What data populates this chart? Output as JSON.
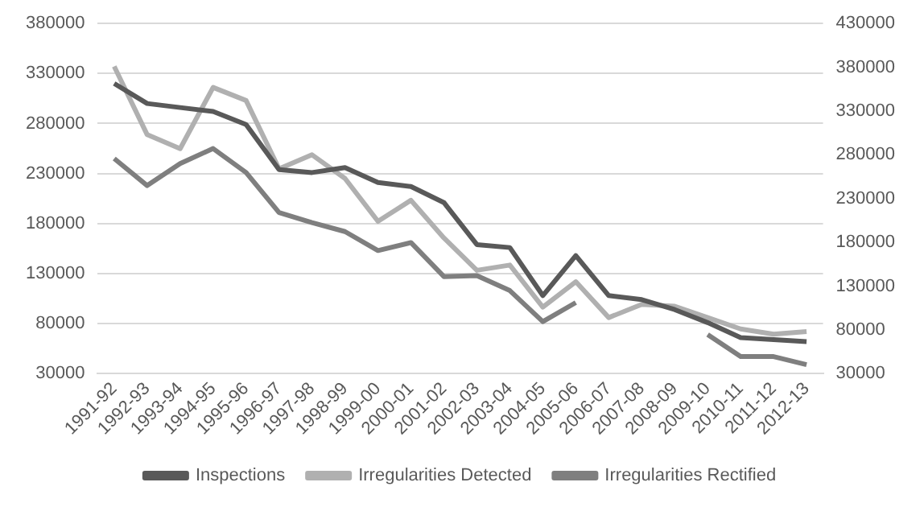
{
  "chart_data": {
    "type": "line",
    "categories": [
      "1991-92",
      "1992-93",
      "1993-94",
      "1994-95",
      "1995-96",
      "1996-97",
      "1997-98",
      "1998-99",
      "1999-00",
      "2000-01",
      "2001-02",
      "2002-03",
      "2003-04",
      "2004-05",
      "2005-06",
      "2006-07",
      "2007-08",
      "2008-09",
      "2009-10",
      "2010-11",
      "2011-12",
      "2012-13"
    ],
    "series": [
      {
        "name": "Inspections",
        "color": "#595959",
        "values": [
          320000,
          300000,
          296000,
          292000,
          279000,
          234000,
          231000,
          236000,
          221000,
          217000,
          201000,
          159000,
          156000,
          108000,
          148000,
          108000,
          104000,
          94000,
          81000,
          66000,
          64000,
          62000
        ]
      },
      {
        "name": "Irregularities Detected",
        "color": "#b0b0b0",
        "axis": "y2",
        "values": [
          381000,
          303000,
          287000,
          357000,
          342000,
          264000,
          280000,
          253000,
          204000,
          228000,
          185000,
          148000,
          154000,
          106000,
          135000,
          94000,
          109000,
          107000,
          94000,
          81000,
          75000,
          78000
        ]
      },
      {
        "name": "Irregularities Rectified",
        "color": "#7f7f7f",
        "values": [
          245000,
          218000,
          240000,
          255000,
          231000,
          191000,
          181000,
          172000,
          153000,
          161000,
          127000,
          128000,
          113000,
          82000,
          101000,
          null,
          null,
          null,
          69000,
          47000,
          47000,
          39000
        ]
      }
    ],
    "ylim": [
      30000,
      380000
    ],
    "yticks": [
      30000,
      80000,
      130000,
      180000,
      230000,
      280000,
      330000,
      380000
    ],
    "y2lim": [
      30000,
      430000
    ],
    "y2ticks": [
      30000,
      80000,
      130000,
      180000,
      230000,
      280000,
      330000,
      380000,
      430000
    ],
    "grid": "y",
    "legend": "bottom",
    "marker": "none",
    "line_style": "solid"
  }
}
